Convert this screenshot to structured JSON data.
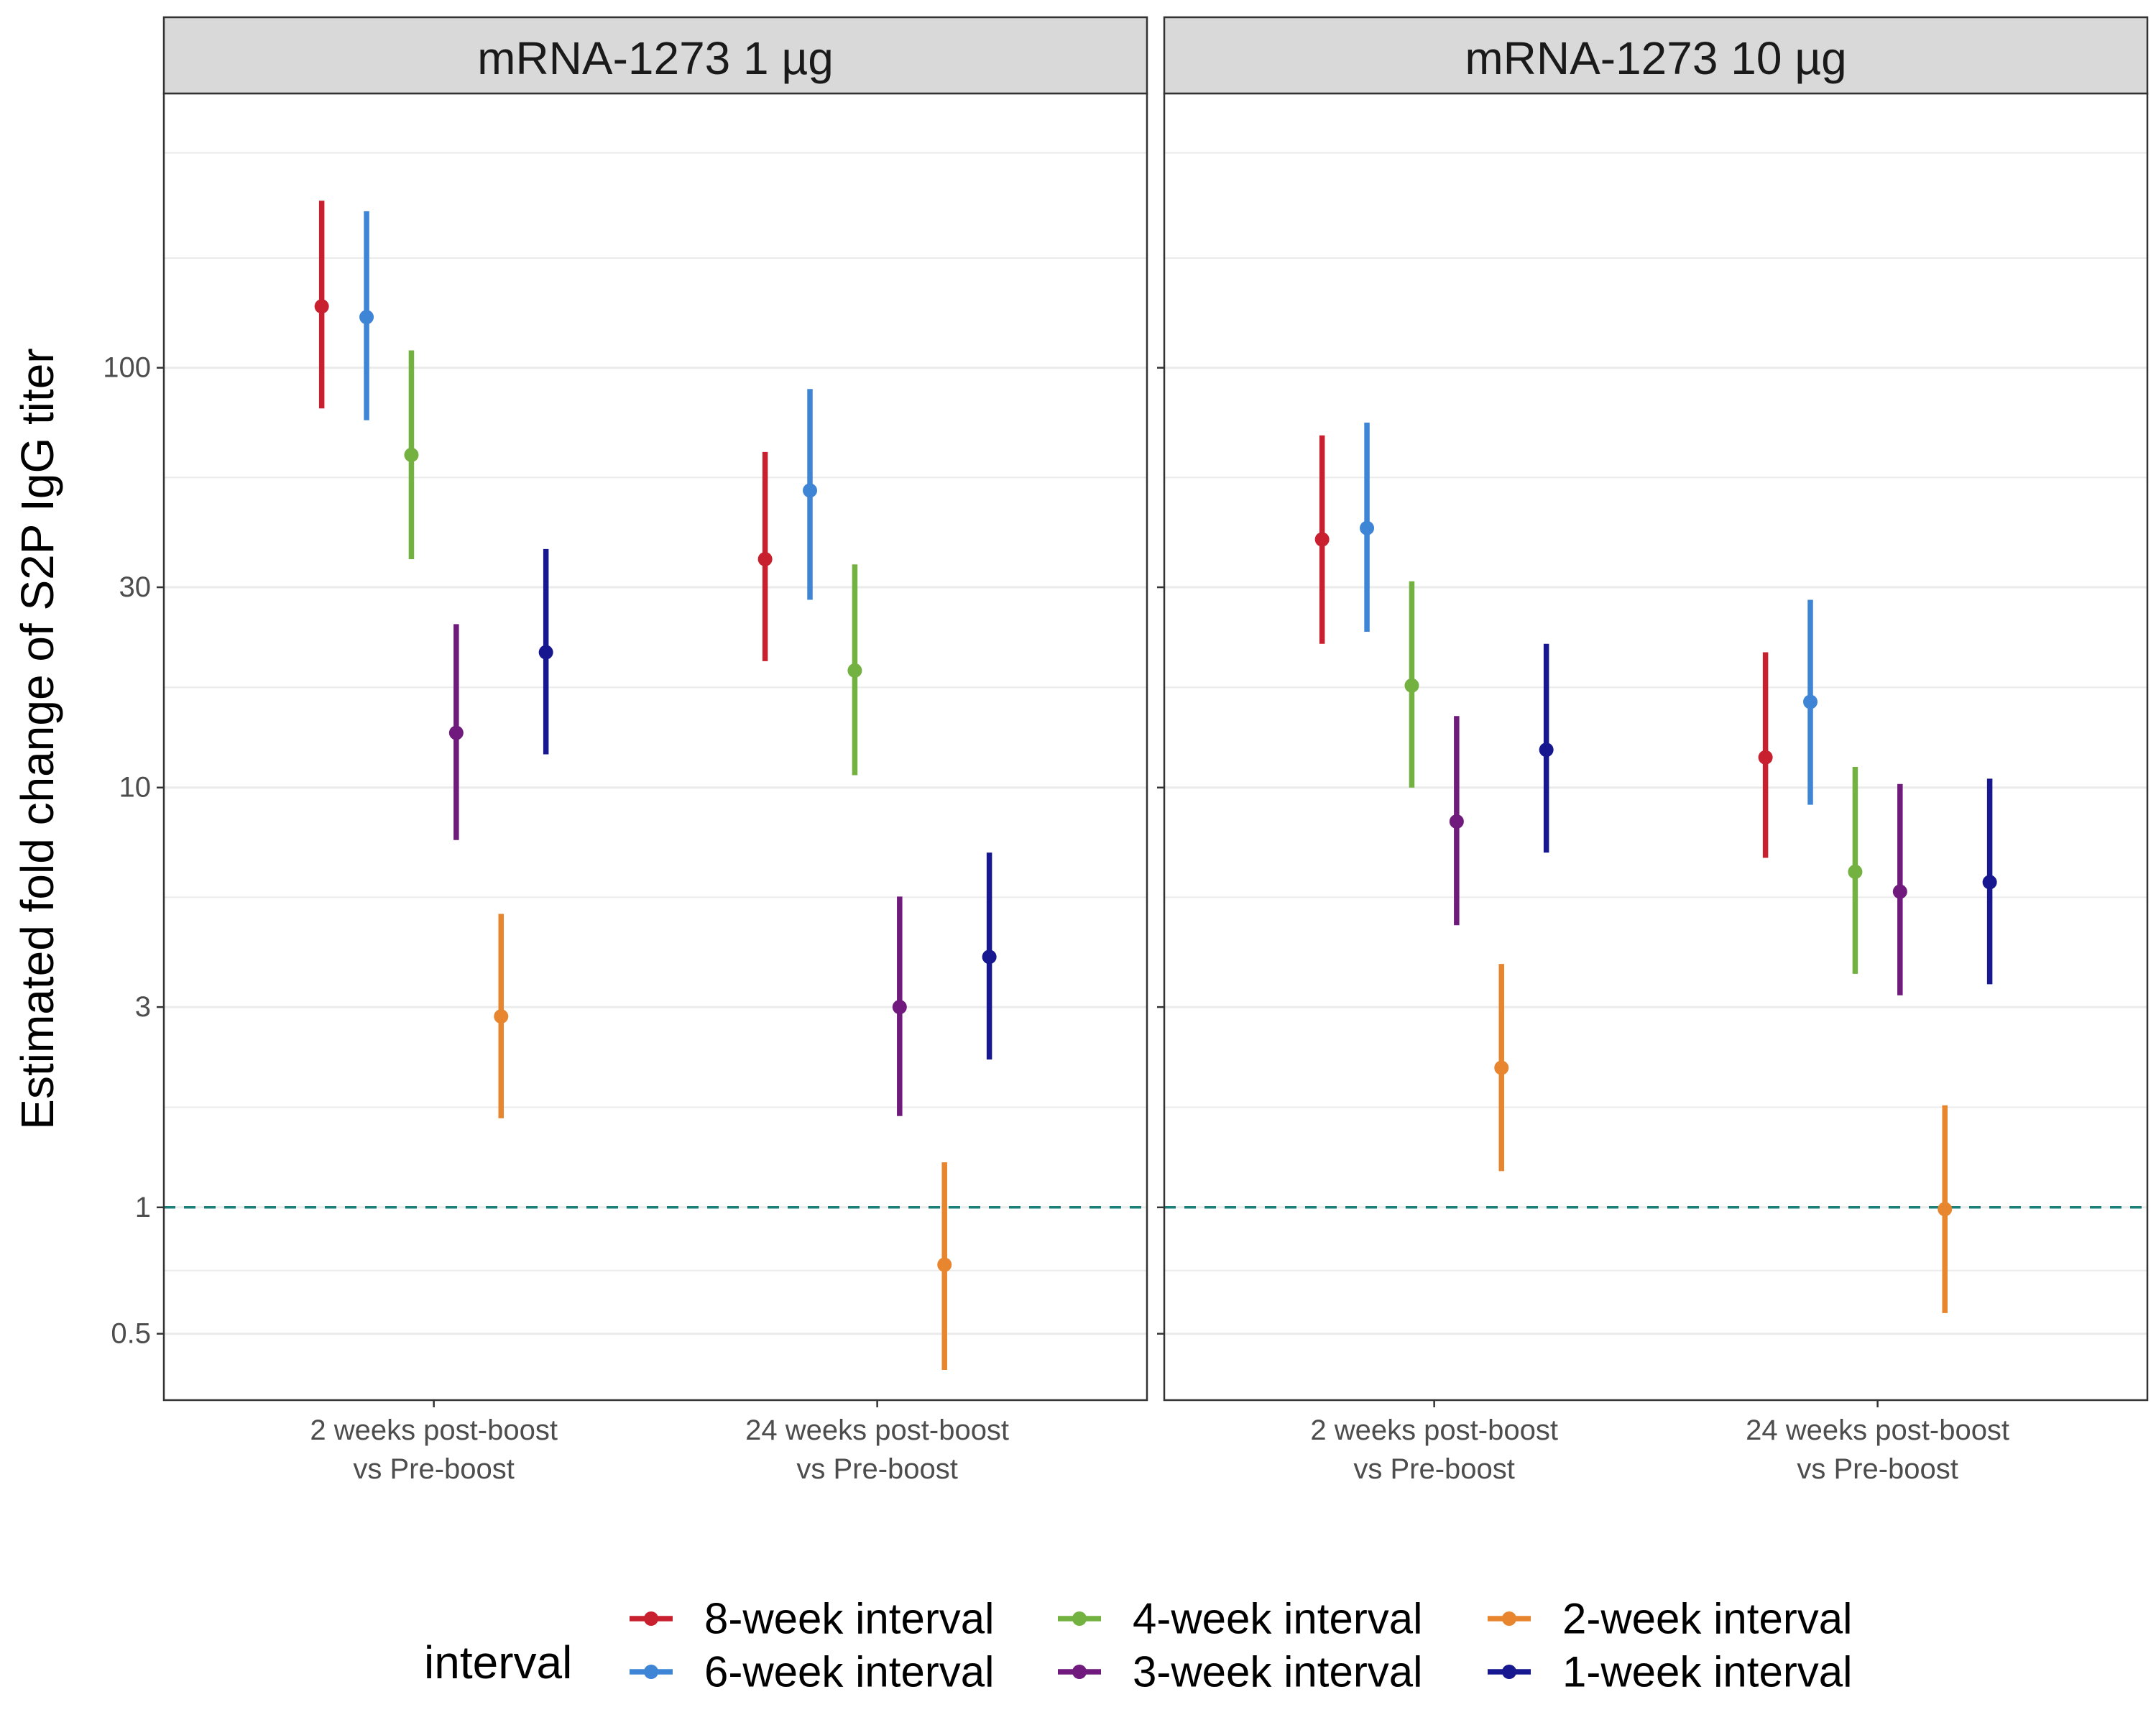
{
  "chart_data": {
    "type": "scatter",
    "subtype": "point-range (estimate with confidence interval)",
    "ylabel": "Estimated fold change of S2P IgG titer",
    "xlabel": "",
    "y_scale": "log10",
    "ylim": [
      0.37,
      400
    ],
    "y_ticks": [
      0.5,
      1,
      3,
      10,
      30,
      100
    ],
    "y_tick_labels": [
      "0.5",
      "1",
      "3",
      "10",
      "30",
      "100"
    ],
    "reference_line": {
      "y": 1,
      "style": "dashed",
      "color": "#1b7f79"
    },
    "grid": true,
    "legend": {
      "title": "interval",
      "placement": "bottom",
      "entries": [
        {
          "name": "8-week interval",
          "color": "#c8202f"
        },
        {
          "name": "6-week interval",
          "color": "#3f85d6"
        },
        {
          "name": "4-week interval",
          "color": "#73b140"
        },
        {
          "name": "3-week interval",
          "color": "#6f1a7c"
        },
        {
          "name": "2-week interval",
          "color": "#e8862f"
        },
        {
          "name": "1-week interval",
          "color": "#17188f"
        }
      ]
    },
    "categories": [
      {
        "line1": "2 weeks post-boost",
        "line2": "vs Pre-boost"
      },
      {
        "line1": "24 weeks post-boost",
        "line2": "vs Pre-boost"
      }
    ],
    "panels": [
      {
        "title": "mRNA-1273 1 µg",
        "series": [
          {
            "name": "8-week interval",
            "values": [
              {
                "est": 140,
                "lo": 80,
                "hi": 250
              },
              {
                "est": 35,
                "lo": 20,
                "hi": 63
              }
            ]
          },
          {
            "name": "6-week interval",
            "values": [
              {
                "est": 132,
                "lo": 75,
                "hi": 236
              },
              {
                "est": 51,
                "lo": 28,
                "hi": 89
              }
            ]
          },
          {
            "name": "4-week interval",
            "values": [
              {
                "est": 62,
                "lo": 35,
                "hi": 110
              },
              {
                "est": 19,
                "lo": 10.7,
                "hi": 34
              }
            ]
          },
          {
            "name": "3-week interval",
            "values": [
              {
                "est": 13.5,
                "lo": 7.5,
                "hi": 24.5
              },
              {
                "est": 3,
                "lo": 1.65,
                "hi": 5.5
              }
            ]
          },
          {
            "name": "2-week interval",
            "values": [
              {
                "est": 2.85,
                "lo": 1.63,
                "hi": 5.0
              },
              {
                "est": 0.73,
                "lo": 0.41,
                "hi": 1.28
              }
            ]
          },
          {
            "name": "1-week interval",
            "values": [
              {
                "est": 21,
                "lo": 12,
                "hi": 37
              },
              {
                "est": 3.95,
                "lo": 2.25,
                "hi": 7.0
              }
            ]
          }
        ]
      },
      {
        "title": "mRNA-1273 10 µg",
        "series": [
          {
            "name": "8-week interval",
            "values": [
              {
                "est": 39,
                "lo": 22,
                "hi": 69
              },
              {
                "est": 11.8,
                "lo": 6.8,
                "hi": 21
              }
            ]
          },
          {
            "name": "6-week interval",
            "values": [
              {
                "est": 41.5,
                "lo": 23.5,
                "hi": 74
              },
              {
                "est": 16,
                "lo": 9.1,
                "hi": 28
              }
            ]
          },
          {
            "name": "4-week interval",
            "values": [
              {
                "est": 17.5,
                "lo": 10,
                "hi": 31
              },
              {
                "est": 6.3,
                "lo": 3.6,
                "hi": 11.2
              }
            ]
          },
          {
            "name": "3-week interval",
            "values": [
              {
                "est": 8.3,
                "lo": 4.7,
                "hi": 14.8
              },
              {
                "est": 5.65,
                "lo": 3.2,
                "hi": 10.2
              }
            ]
          },
          {
            "name": "2-week interval",
            "values": [
              {
                "est": 2.15,
                "lo": 1.22,
                "hi": 3.8
              },
              {
                "est": 0.99,
                "lo": 0.56,
                "hi": 1.75
              }
            ]
          },
          {
            "name": "1-week interval",
            "values": [
              {
                "est": 12.3,
                "lo": 7.0,
                "hi": 22
              },
              {
                "est": 5.95,
                "lo": 3.4,
                "hi": 10.5
              }
            ]
          }
        ]
      }
    ]
  }
}
